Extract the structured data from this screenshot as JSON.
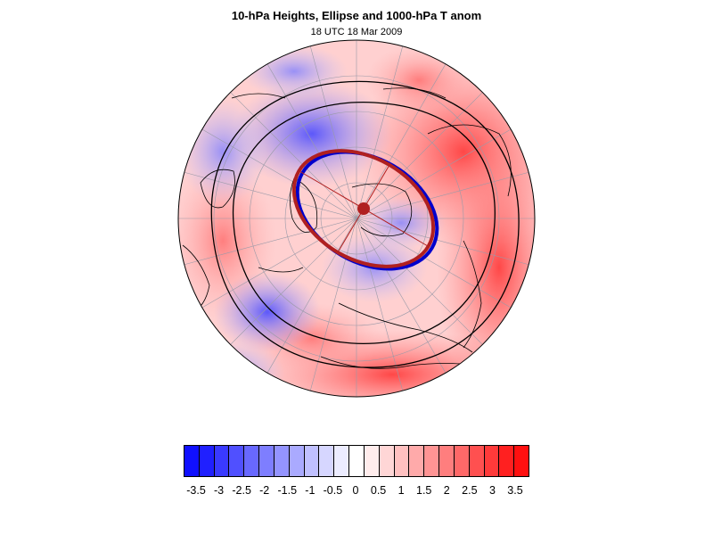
{
  "title": "10-hPa Heights, Ellipse and 1000-hPa T anom",
  "subtitle": "18 UTC 18 Mar 2009",
  "colorbar": {
    "colors": [
      "#1010ff",
      "#2020ff",
      "#3a3aff",
      "#5050ff",
      "#6868ff",
      "#7e7eff",
      "#9494ff",
      "#aaaaff",
      "#c0c0ff",
      "#d6d6ff",
      "#ececff",
      "#ffffff",
      "#ffecec",
      "#ffd6d6",
      "#ffc0c0",
      "#ffaaaa",
      "#ff9494",
      "#ff7e7e",
      "#ff6868",
      "#ff5050",
      "#ff3a3a",
      "#ff2020",
      "#ff1010"
    ],
    "labels": [
      "-3.5",
      "-3",
      "-2.5",
      "-2",
      "-1.5",
      "-1",
      "-0.5",
      "0",
      "0.5",
      "1",
      "1.5",
      "2",
      "2.5",
      "3",
      "3.5"
    ],
    "min": -3.75,
    "max": 3.75,
    "units_per_step": 0.25
  },
  "colors": {
    "ellipse": "#b02020",
    "height_contour_blue": "#0000cc",
    "contour": "#000000",
    "grid": "#9a9aa8",
    "coast": "#000000"
  }
}
